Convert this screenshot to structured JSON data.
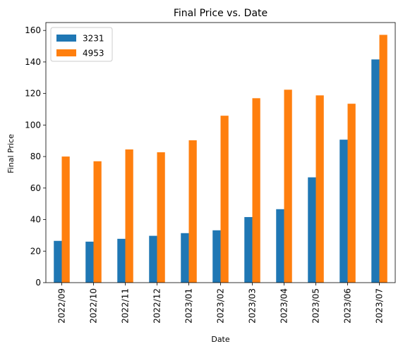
{
  "chart_data": {
    "type": "bar",
    "title": "Final Price vs. Date",
    "xlabel": "Date",
    "ylabel": "Final Price",
    "categories": [
      "2022/09",
      "2022/10",
      "2022/11",
      "2022/12",
      "2023/01",
      "2023/02",
      "2023/03",
      "2023/04",
      "2023/05",
      "2023/06",
      "2023/07"
    ],
    "series": [
      {
        "name": "3231",
        "color": "#1f77b4",
        "values": [
          26.5,
          26.0,
          27.8,
          29.7,
          31.4,
          33.2,
          41.6,
          46.6,
          66.8,
          90.7,
          141.6
        ]
      },
      {
        "name": "4953",
        "color": "#ff7f0e",
        "values": [
          80.0,
          77.0,
          84.5,
          82.7,
          90.3,
          105.9,
          117.0,
          122.4,
          118.8,
          113.5,
          157.2
        ]
      }
    ],
    "ylim": [
      0,
      165
    ],
    "yticks": [
      0,
      20,
      40,
      60,
      80,
      100,
      120,
      140,
      160
    ],
    "grid": false,
    "legend_position": "top-left"
  }
}
